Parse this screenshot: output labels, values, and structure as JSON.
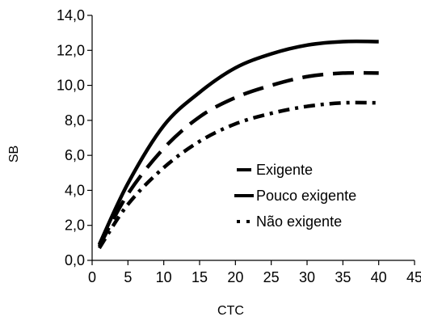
{
  "chart_data": {
    "type": "line",
    "title": "",
    "xlabel": "CTC",
    "ylabel": "SB",
    "xlim": [
      0,
      45
    ],
    "ylim": [
      0,
      14
    ],
    "x_ticks": [
      0,
      5,
      10,
      15,
      20,
      25,
      30,
      35,
      40,
      45
    ],
    "y_ticks": [
      0,
      2,
      4,
      6,
      8,
      10,
      12,
      14
    ],
    "x_tick_labels": [
      "0",
      "5",
      "10",
      "15",
      "20",
      "25",
      "30",
      "35",
      "40",
      "45"
    ],
    "y_tick_labels": [
      "0,0",
      "2,0",
      "4,0",
      "6,0",
      "8,0",
      "10,0",
      "12,0",
      "14,0"
    ],
    "grid": false,
    "legend_position": "center-right",
    "color": "#000000",
    "series": [
      {
        "name": "Exigente",
        "style": "solid",
        "x": [
          1,
          5,
          10,
          15,
          20,
          25,
          30,
          35,
          40
        ],
        "y": [
          0.9,
          4.4,
          7.7,
          9.6,
          11.0,
          11.8,
          12.3,
          12.5,
          12.5
        ]
      },
      {
        "name": "Pouco exigente",
        "style": "long-dash",
        "x": [
          1,
          5,
          10,
          15,
          20,
          25,
          30,
          35,
          40
        ],
        "y": [
          0.8,
          3.8,
          6.4,
          8.2,
          9.3,
          10.0,
          10.5,
          10.7,
          10.7
        ]
      },
      {
        "name": "Não exigente",
        "style": "dash-dot",
        "x": [
          1,
          5,
          10,
          15,
          20,
          25,
          30,
          35,
          40
        ],
        "y": [
          0.7,
          3.2,
          5.3,
          6.8,
          7.8,
          8.4,
          8.8,
          9.0,
          9.0
        ]
      }
    ]
  }
}
